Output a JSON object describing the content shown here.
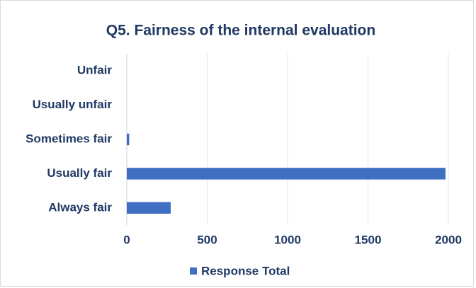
{
  "chart_data": {
    "type": "bar",
    "orientation": "horizontal",
    "title": "Q5. Fairness of the internal evaluation",
    "categories": [
      "Unfair",
      "Usually unfair",
      "Sometimes fair",
      "Usually fair",
      "Always fair"
    ],
    "series": [
      {
        "name": "Response Total",
        "color": "#3f6fc2",
        "values": [
          0,
          0,
          15,
          1982,
          273
        ]
      }
    ],
    "xlim": [
      0,
      2000
    ],
    "xticks": [
      0,
      500,
      1000,
      1500,
      2000
    ],
    "grid": true,
    "legend": "bottom"
  }
}
